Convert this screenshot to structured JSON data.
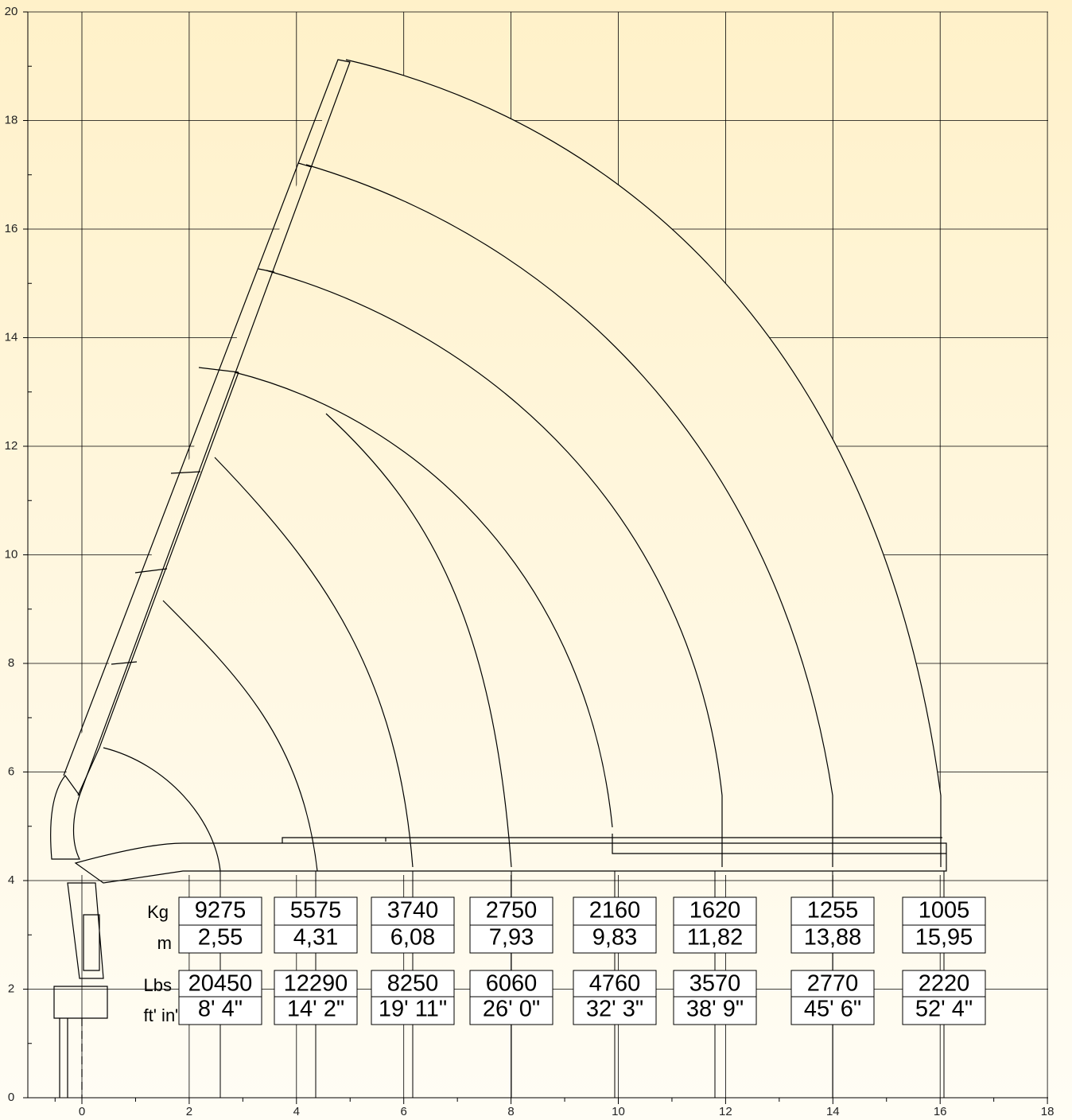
{
  "axes": {
    "x_ticks": [
      0,
      2,
      4,
      6,
      8,
      10,
      12,
      14,
      16,
      18
    ],
    "y_ticks": [
      0,
      2,
      4,
      6,
      8,
      10,
      12,
      14,
      16,
      18,
      20
    ]
  },
  "row_labels": {
    "kg": "Kg",
    "m": "m",
    "lbs": "Lbs",
    "ft_in": "ft' in\""
  },
  "loads": [
    {
      "kg": "9275",
      "m": "2,55",
      "lbs": "20450",
      "ft_in": "8' 4\""
    },
    {
      "kg": "5575",
      "m": "4,31",
      "lbs": "12290",
      "ft_in": "14' 2\""
    },
    {
      "kg": "3740",
      "m": "6,08",
      "lbs": "8250",
      "ft_in": "19' 11\""
    },
    {
      "kg": "2750",
      "m": "7,93",
      "lbs": "6060",
      "ft_in": "26' 0\""
    },
    {
      "kg": "2160",
      "m": "9,83",
      "lbs": "4760",
      "ft_in": "32' 3\""
    },
    {
      "kg": "1620",
      "m": "11,82",
      "lbs": "3570",
      "ft_in": "38' 9\""
    },
    {
      "kg": "1255",
      "m": "13,88",
      "lbs": "2770",
      "ft_in": "45' 6\""
    },
    {
      "kg": "1005",
      "m": "15,95",
      "lbs": "2220",
      "ft_in": "52' 4\""
    }
  ]
}
